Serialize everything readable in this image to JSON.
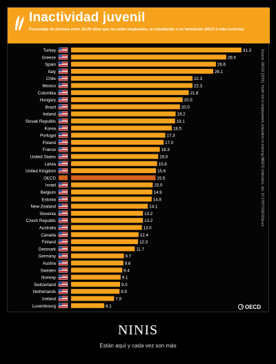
{
  "header": {
    "title": "Inactividad juvenil",
    "subtitle": "Porcentaje de jóvenes entre 15-29 años que no están empleados, ni estudiando o en formación (2013 ó más reciente)"
  },
  "source_note": "Source: OECD (2015), Youth not in employment, education or training (NEET) (indicator). doi: 10.1787/72d1033a-en",
  "logo_text": "OECD",
  "colors": {
    "bar": "#f6a21c",
    "highlight": "#d4631c",
    "header": "#f6a21c"
  },
  "chart_data": {
    "type": "bar",
    "orientation": "horizontal",
    "title": "Inactividad juvenil",
    "subtitle": "Porcentaje de jóvenes entre 15-29 años que no están empleados, ni estudiando o en formación (2013 ó más reciente)",
    "categories": [
      "Turkey",
      "Greece",
      "Spain",
      "Italy",
      "Chile",
      "Mexico",
      "Colombia",
      "Hungary",
      "Brazil",
      "Ireland",
      "Slovak Republic",
      "Korea",
      "Portugal",
      "Poland",
      "France",
      "United States",
      "Latvia",
      "United Kingdom",
      "OECD",
      "Israel",
      "Belgium",
      "Estonia",
      "New Zealand",
      "Slovenia",
      "Czech Republic",
      "Australia",
      "Canada",
      "Finland",
      "Denmark",
      "Germany",
      "Austria",
      "Sweden",
      "Norway",
      "Switzerland",
      "Netherlands",
      "Iceland",
      "Luxembourg"
    ],
    "values": [
      31.3,
      28.5,
      26.6,
      26.1,
      22.3,
      22.3,
      21.6,
      20.5,
      20.0,
      19.2,
      19.1,
      18.5,
      17.3,
      17.0,
      16.3,
      16.0,
      15.8,
      15.6,
      15.5,
      15.0,
      14.9,
      14.8,
      14.1,
      13.2,
      13.2,
      13.0,
      12.4,
      12.3,
      11.7,
      9.7,
      9.6,
      9.4,
      9.1,
      9.0,
      8.9,
      7.9,
      6.1
    ],
    "value_labels": [
      "31.3",
      "28.5",
      "26.6",
      "26.1",
      "22.3",
      "22.3",
      "21.6",
      "20.5",
      "20.0",
      "19.2",
      "19.1",
      "18.5",
      "17.3",
      "17.0",
      "16.3",
      "16.0",
      "15.8",
      "15.6",
      "15.5",
      "15.0",
      "14.9",
      "14.8",
      "14.1",
      "13.2",
      "13.2",
      "13.0",
      "12.4",
      "12.3",
      "11.7",
      "9.7",
      "9.6",
      "9.4",
      "9.1",
      "9.0",
      "8.9",
      "7.9",
      "6.1"
    ],
    "highlight": "OECD",
    "xlim": [
      0,
      31.3
    ],
    "grid": false,
    "legend": "none"
  },
  "caption": {
    "title": "NINIS",
    "subtitle": "Están aquí y cada vez son más"
  }
}
